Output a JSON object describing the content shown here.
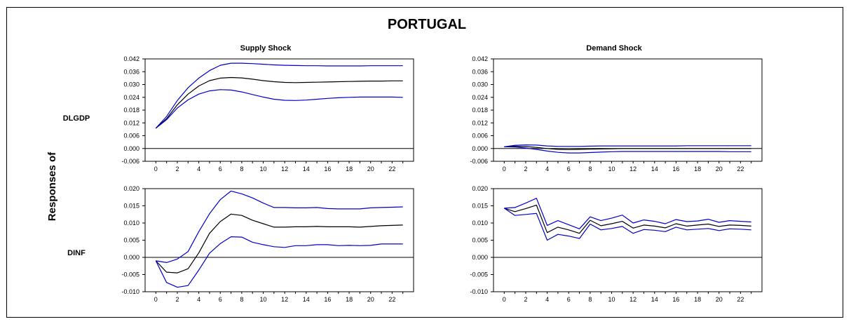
{
  "title": "PORTUGAL",
  "side_label": "Responses of",
  "row_labels": [
    "DLGDP",
    "DINF"
  ],
  "column_titles": [
    "Supply Shock",
    "Demand Shock"
  ],
  "colors": {
    "estimate": "#000000",
    "bands": "#0000cc",
    "zero_line": "#000000"
  },
  "chart_data": [
    {
      "type": "line",
      "title": "Supply Shock",
      "response": "DLGDP",
      "x": [
        0,
        1,
        2,
        3,
        4,
        5,
        6,
        7,
        8,
        9,
        10,
        11,
        12,
        13,
        14,
        15,
        16,
        17,
        18,
        19,
        20,
        21,
        22,
        23
      ],
      "xticks": [
        "0",
        "2",
        "4",
        "6",
        "8",
        "10",
        "12",
        "14",
        "16",
        "18",
        "20",
        "22"
      ],
      "ylim": [
        -0.006,
        0.042
      ],
      "yticks": [
        "-0.006",
        "0.000",
        "0.006",
        "0.012",
        "0.018",
        "0.024",
        "0.030",
        "0.036",
        "0.042"
      ],
      "series": [
        {
          "role": "upper",
          "values": [
            0.0095,
            0.015,
            0.0225,
            0.0285,
            0.033,
            0.0365,
            0.039,
            0.04,
            0.04,
            0.0398,
            0.0395,
            0.0392,
            0.039,
            0.0389,
            0.0388,
            0.0388,
            0.0387,
            0.0387,
            0.0387,
            0.0387,
            0.0388,
            0.0388,
            0.0388,
            0.0388
          ]
        },
        {
          "role": "estimate",
          "values": [
            0.0095,
            0.014,
            0.0205,
            0.0255,
            0.0293,
            0.0318,
            0.033,
            0.0333,
            0.0331,
            0.0325,
            0.0318,
            0.0313,
            0.031,
            0.0309,
            0.031,
            0.0311,
            0.0312,
            0.0313,
            0.0314,
            0.0315,
            0.0316,
            0.0316,
            0.0317,
            0.0317
          ]
        },
        {
          "role": "lower",
          "values": [
            0.0095,
            0.0135,
            0.019,
            0.0228,
            0.0255,
            0.027,
            0.0276,
            0.0274,
            0.0265,
            0.0253,
            0.0241,
            0.0231,
            0.0226,
            0.0225,
            0.0227,
            0.0231,
            0.0235,
            0.0238,
            0.024,
            0.0241,
            0.0241,
            0.0241,
            0.0241,
            0.024
          ]
        }
      ]
    },
    {
      "type": "line",
      "title": "Demand Shock",
      "response": "DLGDP",
      "x": [
        0,
        1,
        2,
        3,
        4,
        5,
        6,
        7,
        8,
        9,
        10,
        11,
        12,
        13,
        14,
        15,
        16,
        17,
        18,
        19,
        20,
        21,
        22,
        23
      ],
      "xticks": [
        "0",
        "2",
        "4",
        "6",
        "8",
        "10",
        "12",
        "14",
        "16",
        "18",
        "20",
        "22"
      ],
      "ylim": [
        -0.006,
        0.042
      ],
      "yticks": [
        "-0.006",
        "0.000",
        "0.006",
        "0.012",
        "0.018",
        "0.024",
        "0.030",
        "0.036",
        "0.042"
      ],
      "series": [
        {
          "role": "upper",
          "values": [
            0.0008,
            0.0015,
            0.0017,
            0.0016,
            0.0012,
            0.001,
            0.001,
            0.001,
            0.0011,
            0.0012,
            0.0012,
            0.0012,
            0.0012,
            0.0012,
            0.0012,
            0.0012,
            0.0012,
            0.0013,
            0.0013,
            0.0013,
            0.0013,
            0.0013,
            0.0013,
            0.0013
          ]
        },
        {
          "role": "estimate",
          "values": [
            0.0008,
            0.0011,
            0.0009,
            0.0005,
            0.0,
            -0.0004,
            -0.0005,
            -0.0004,
            -0.0003,
            -0.0002,
            -0.0001,
            0.0,
            0.0,
            0.0,
            0.0,
            0.0,
            0.0,
            0.0,
            0.0,
            0.0,
            0.0,
            0.0,
            0.0,
            0.0
          ]
        },
        {
          "role": "lower",
          "values": [
            0.0008,
            0.0007,
            0.0002,
            -0.0004,
            -0.0012,
            -0.0018,
            -0.0021,
            -0.0021,
            -0.0019,
            -0.0017,
            -0.0015,
            -0.0014,
            -0.0014,
            -0.0014,
            -0.0014,
            -0.0014,
            -0.0014,
            -0.0014,
            -0.0014,
            -0.0014,
            -0.0014,
            -0.0015,
            -0.0015,
            -0.0015
          ]
        }
      ]
    },
    {
      "type": "line",
      "title": "Supply Shock",
      "response": "DINF",
      "x": [
        0,
        1,
        2,
        3,
        4,
        5,
        6,
        7,
        8,
        9,
        10,
        11,
        12,
        13,
        14,
        15,
        16,
        17,
        18,
        19,
        20,
        21,
        22,
        23
      ],
      "xticks": [
        "0",
        "2",
        "4",
        "6",
        "8",
        "10",
        "12",
        "14",
        "16",
        "18",
        "20",
        "22"
      ],
      "ylim": [
        -0.01,
        0.02
      ],
      "yticks": [
        "-0.010",
        "-0.005",
        "0.000",
        "0.005",
        "0.010",
        "0.015",
        "0.020"
      ],
      "series": [
        {
          "role": "upper",
          "values": [
            -0.001,
            -0.0015,
            -0.0005,
            0.0017,
            0.0075,
            0.0127,
            0.0168,
            0.0193,
            0.0185,
            0.0173,
            0.0158,
            0.0145,
            0.0145,
            0.0144,
            0.0144,
            0.0145,
            0.0142,
            0.0141,
            0.0141,
            0.0141,
            0.0144,
            0.0145,
            0.0146,
            0.0147
          ]
        },
        {
          "role": "estimate",
          "values": [
            -0.001,
            -0.0043,
            -0.0045,
            -0.0033,
            0.0013,
            0.007,
            0.0104,
            0.0126,
            0.0122,
            0.0108,
            0.0098,
            0.0088,
            0.0088,
            0.0089,
            0.0089,
            0.009,
            0.0089,
            0.0089,
            0.0089,
            0.0088,
            0.009,
            0.0092,
            0.0093,
            0.0094
          ]
        },
        {
          "role": "lower",
          "values": [
            -0.001,
            -0.0073,
            -0.0087,
            -0.0082,
            -0.0037,
            0.0012,
            0.004,
            0.006,
            0.0059,
            0.0044,
            0.0037,
            0.0031,
            0.0029,
            0.0034,
            0.0034,
            0.0037,
            0.0037,
            0.0034,
            0.0035,
            0.0034,
            0.0035,
            0.0039,
            0.0039,
            0.0039
          ]
        }
      ]
    },
    {
      "type": "line",
      "title": "Demand Shock",
      "response": "DINF",
      "x": [
        0,
        1,
        2,
        3,
        4,
        5,
        6,
        7,
        8,
        9,
        10,
        11,
        12,
        13,
        14,
        15,
        16,
        17,
        18,
        19,
        20,
        21,
        22,
        23
      ],
      "xticks": [
        "0",
        "2",
        "4",
        "6",
        "8",
        "10",
        "12",
        "14",
        "16",
        "18",
        "20",
        "22"
      ],
      "ylim": [
        -0.01,
        0.02
      ],
      "yticks": [
        "-0.010",
        "-0.005",
        "0.000",
        "0.005",
        "0.010",
        "0.015",
        "0.020"
      ],
      "series": [
        {
          "role": "upper",
          "values": [
            0.0143,
            0.0145,
            0.0158,
            0.0172,
            0.0093,
            0.0107,
            0.0095,
            0.0083,
            0.0118,
            0.0107,
            0.0114,
            0.0123,
            0.01,
            0.0109,
            0.0105,
            0.0098,
            0.011,
            0.0104,
            0.0106,
            0.0111,
            0.0102,
            0.0107,
            0.0105,
            0.0103
          ]
        },
        {
          "role": "estimate",
          "values": [
            0.0143,
            0.0133,
            0.0142,
            0.0152,
            0.0072,
            0.0088,
            0.008,
            0.007,
            0.0108,
            0.0092,
            0.0098,
            0.0105,
            0.0085,
            0.0094,
            0.0091,
            0.0086,
            0.0098,
            0.0091,
            0.0094,
            0.0097,
            0.009,
            0.0094,
            0.0093,
            0.0091
          ]
        },
        {
          "role": "lower",
          "values": [
            0.0143,
            0.0122,
            0.0125,
            0.0128,
            0.005,
            0.0067,
            0.0062,
            0.0055,
            0.0097,
            0.008,
            0.0084,
            0.009,
            0.007,
            0.0081,
            0.0079,
            0.0075,
            0.0088,
            0.008,
            0.0082,
            0.0084,
            0.0078,
            0.0083,
            0.0082,
            0.008
          ]
        }
      ]
    }
  ]
}
